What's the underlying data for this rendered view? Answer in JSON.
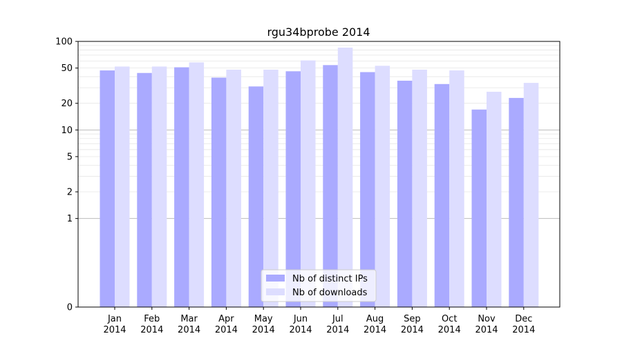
{
  "chart_data": {
    "type": "bar",
    "title": "rgu34bprobe 2014",
    "xlabel": "",
    "ylabel": "",
    "yscale": "symlog",
    "ylim": [
      0,
      100
    ],
    "yticks": [
      0,
      1,
      2,
      5,
      10,
      20,
      50,
      100
    ],
    "grid": "horizontal",
    "legend_position": "bottom-center",
    "categories": [
      [
        "Jan",
        "2014"
      ],
      [
        "Feb",
        "2014"
      ],
      [
        "Mar",
        "2014"
      ],
      [
        "Apr",
        "2014"
      ],
      [
        "May",
        "2014"
      ],
      [
        "Jun",
        "2014"
      ],
      [
        "Jul",
        "2014"
      ],
      [
        "Aug",
        "2014"
      ],
      [
        "Sep",
        "2014"
      ],
      [
        "Oct",
        "2014"
      ],
      [
        "Nov",
        "2014"
      ],
      [
        "Dec",
        "2014"
      ]
    ],
    "series": [
      {
        "name": "Nb of distinct IPs",
        "color": "#aaaaff",
        "values": [
          47,
          44,
          51,
          39,
          31,
          46,
          54,
          45,
          36,
          33,
          17,
          23
        ]
      },
      {
        "name": "Nb of downloads",
        "color": "#ddddff",
        "values": [
          52,
          52,
          58,
          48,
          48,
          61,
          85,
          53,
          48,
          47,
          27,
          34
        ]
      }
    ]
  }
}
